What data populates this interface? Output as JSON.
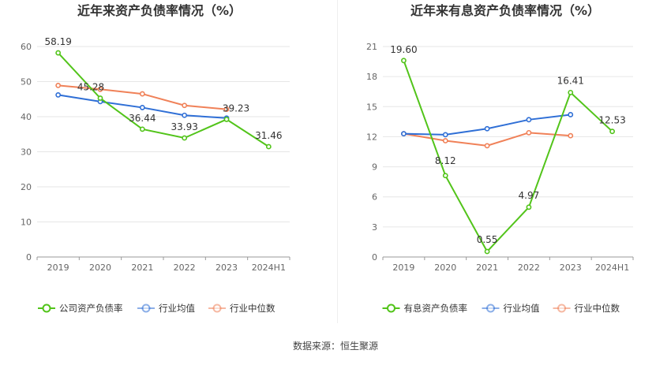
{
  "source_label": "数据来源：恒生聚源",
  "chart_data": [
    {
      "type": "line",
      "title": "近年来资产负债率情况（%）",
      "categories": [
        "2019",
        "2020",
        "2021",
        "2022",
        "2023",
        "2024H1"
      ],
      "ylim": [
        0,
        60
      ],
      "yticks": [
        0,
        10,
        20,
        30,
        40,
        50,
        60
      ],
      "grid": true,
      "legend_position": "bottom",
      "series": [
        {
          "name": "公司资产负债率",
          "color": "#52c41a",
          "values": [
            58.19,
            45.28,
            36.44,
            33.93,
            39.23,
            31.46
          ],
          "labels": [
            "58.19",
            "45.28",
            "36.44",
            "33.93",
            "39.23",
            "31.46"
          ]
        },
        {
          "name": "行业均值",
          "color": "#2f6fd6",
          "values": [
            46.2,
            44.3,
            42.6,
            40.4,
            39.6,
            null
          ]
        },
        {
          "name": "行业中位数",
          "color": "#f08158",
          "values": [
            48.9,
            47.8,
            46.5,
            43.2,
            42.1,
            null
          ]
        }
      ]
    },
    {
      "type": "line",
      "title": "近年来有息资产负债率情况（%）",
      "categories": [
        "2019",
        "2020",
        "2021",
        "2022",
        "2023",
        "2024H1"
      ],
      "ylim": [
        0,
        21
      ],
      "yticks": [
        0,
        3,
        6,
        9,
        12,
        15,
        18,
        21
      ],
      "grid": true,
      "legend_position": "bottom",
      "series": [
        {
          "name": "有息资产负债率",
          "color": "#52c41a",
          "values": [
            19.6,
            8.12,
            0.55,
            4.97,
            16.41,
            12.53
          ],
          "labels": [
            "19.60",
            "8.12",
            "0.55",
            "4.97",
            "16.41",
            "12.53"
          ]
        },
        {
          "name": "行业均值",
          "color": "#2f6fd6",
          "values": [
            12.3,
            12.2,
            12.8,
            13.7,
            14.2,
            null
          ]
        },
        {
          "name": "行业中位数",
          "color": "#f08158",
          "values": [
            12.3,
            11.6,
            11.1,
            12.4,
            12.1,
            null
          ]
        }
      ]
    }
  ]
}
